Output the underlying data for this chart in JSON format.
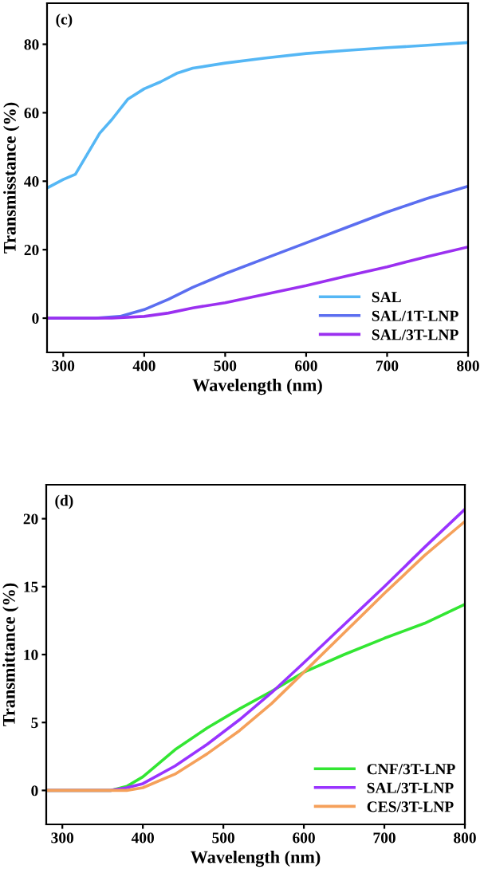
{
  "chart_data": [
    {
      "type": "line",
      "xlabel": "Wavelength (nm)",
      "ylabel": "Transmisstance (%)",
      "annotations": [
        "(c)"
      ],
      "xlim": [
        280,
        800
      ],
      "xticks": [
        300,
        400,
        500,
        600,
        700,
        800
      ],
      "ylim": [
        -10,
        92
      ],
      "yticks": [
        0,
        20,
        40,
        60,
        80
      ],
      "legend": "bottom right",
      "grid": false,
      "series": [
        {
          "name": "SAL",
          "color": "#55b7f5",
          "x": [
            280,
            300,
            315,
            330,
            345,
            360,
            380,
            400,
            420,
            440,
            460,
            500,
            550,
            600,
            650,
            700,
            750,
            800
          ],
          "values": [
            38,
            40.5,
            42,
            48,
            54,
            58,
            64,
            67,
            69,
            71.5,
            73,
            74.5,
            76,
            77.3,
            78.2,
            79,
            79.7,
            80.5
          ]
        },
        {
          "name": "SAL/1T-LNP",
          "color": "#5b6ef0",
          "x": [
            280,
            340,
            370,
            400,
            430,
            460,
            500,
            550,
            600,
            650,
            700,
            750,
            800
          ],
          "values": [
            0,
            0,
            0.5,
            2.5,
            5.5,
            9,
            13,
            17.5,
            22,
            26.5,
            31,
            35,
            38.5
          ]
        },
        {
          "name": "SAL/3T-LNP",
          "color": "#9b30f0",
          "x": [
            280,
            360,
            400,
            430,
            460,
            500,
            550,
            600,
            650,
            700,
            750,
            800
          ],
          "values": [
            0,
            0,
            0.5,
            1.5,
            3,
            4.5,
            7,
            9.5,
            12.3,
            15,
            18,
            20.8
          ]
        }
      ]
    },
    {
      "type": "line",
      "xlabel": "Wavelength (nm)",
      "ylabel": "Transmittance (%)",
      "annotations": [
        "(d)"
      ],
      "xlim": [
        280,
        800
      ],
      "xticks": [
        300,
        400,
        500,
        600,
        700,
        800
      ],
      "ylim": [
        -2.5,
        22.5
      ],
      "yticks": [
        0,
        5,
        10,
        15,
        20
      ],
      "legend": "bottom right",
      "grid": false,
      "series": [
        {
          "name": "CNF/3T-LNP",
          "color": "#33e633",
          "x": [
            280,
            360,
            380,
            400,
            420,
            440,
            480,
            520,
            560,
            600,
            650,
            700,
            750,
            800
          ],
          "values": [
            0,
            0,
            0.3,
            1,
            2,
            3,
            4.6,
            6,
            7.3,
            8.7,
            10,
            11.2,
            12.3,
            13.7
          ]
        },
        {
          "name": "SAL/3T-LNP",
          "color": "#9933ff",
          "x": [
            280,
            360,
            380,
            400,
            440,
            480,
            520,
            560,
            600,
            650,
            700,
            750,
            800
          ],
          "values": [
            0,
            0,
            0.2,
            0.5,
            1.8,
            3.4,
            5.2,
            7.2,
            9.4,
            12.2,
            15,
            17.9,
            20.7
          ]
        },
        {
          "name": "CES/3T-LNP",
          "color": "#f5a05a",
          "x": [
            280,
            380,
            400,
            440,
            480,
            520,
            560,
            600,
            650,
            700,
            750,
            800
          ],
          "values": [
            0,
            0,
            0.2,
            1.2,
            2.7,
            4.4,
            6.4,
            8.7,
            11.6,
            14.5,
            17.3,
            19.8
          ]
        }
      ]
    }
  ]
}
